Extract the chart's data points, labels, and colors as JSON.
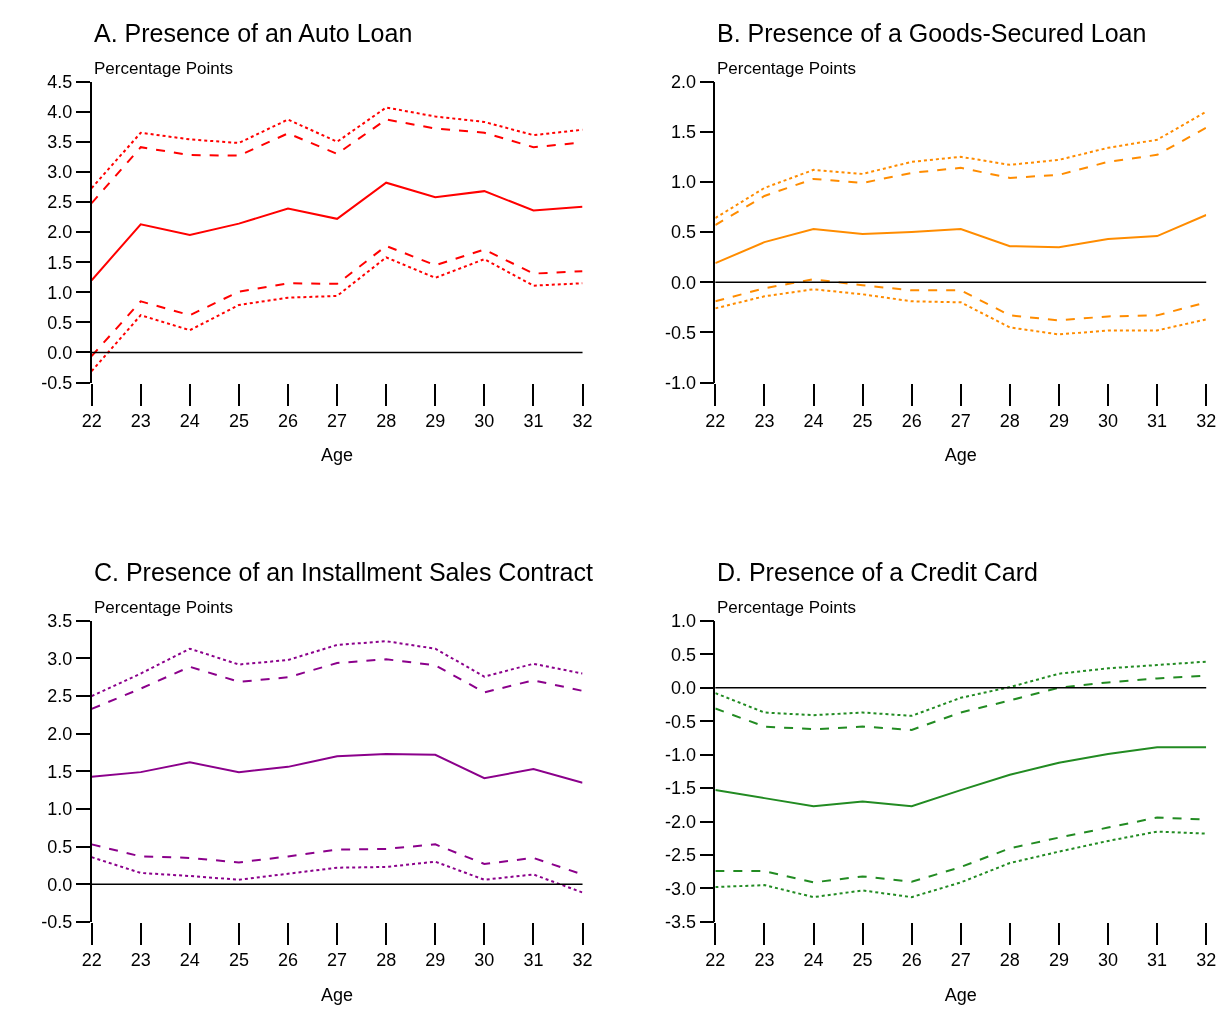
{
  "chart_data": [
    {
      "type": "line",
      "title": "A. Presence of an Auto Loan",
      "ylabel": "Percentage Points",
      "xlabel": "Age",
      "x": [
        22,
        23,
        24,
        25,
        26,
        27,
        28,
        29,
        30,
        31,
        32
      ],
      "xlim": [
        22,
        32
      ],
      "xticks": [
        22,
        23,
        24,
        25,
        26,
        27,
        28,
        29,
        30,
        31,
        32
      ],
      "ylim": [
        -0.5,
        4.5
      ],
      "yticks": [
        {
          "value": -0.5,
          "label": "-0.5"
        },
        {
          "value": 0,
          "label": "0.0"
        },
        {
          "value": 0.5,
          "label": "0.5"
        },
        {
          "value": 1,
          "label": "1.0"
        },
        {
          "value": 1.5,
          "label": "1.5"
        },
        {
          "value": 2,
          "label": "2.0"
        },
        {
          "value": 2.5,
          "label": "2.5"
        },
        {
          "value": 3,
          "label": "3.0"
        },
        {
          "value": 3.5,
          "label": "3.5"
        },
        {
          "value": 4,
          "label": "4.0"
        },
        {
          "value": 4.5,
          "label": "4.5"
        }
      ],
      "ref_lines": [
        {
          "axis": "y",
          "value": 0,
          "color": "#000000"
        }
      ],
      "series": [
        {
          "color": "#ff0000",
          "line_style": "solid",
          "values": [
            1.2,
            2.13,
            1.95,
            2.14,
            2.39,
            2.22,
            2.82,
            2.58,
            2.68,
            2.36,
            2.42
          ]
        },
        {
          "color": "#ff0000",
          "line_style": "dashed",
          "values": [
            2.48,
            3.41,
            3.28,
            3.27,
            3.64,
            3.3,
            3.87,
            3.72,
            3.65,
            3.41,
            3.49
          ]
        },
        {
          "color": "#ff0000",
          "line_style": "dotted",
          "values": [
            2.73,
            3.65,
            3.54,
            3.48,
            3.87,
            3.5,
            4.07,
            3.92,
            3.83,
            3.61,
            3.7
          ]
        },
        {
          "color": "#ff0000",
          "line_style": "dashed",
          "values": [
            -0.06,
            0.85,
            0.62,
            1.01,
            1.15,
            1.14,
            1.77,
            1.45,
            1.71,
            1.31,
            1.35
          ]
        },
        {
          "color": "#ff0000",
          "line_style": "dotted",
          "values": [
            -0.31,
            0.62,
            0.37,
            0.79,
            0.91,
            0.94,
            1.58,
            1.24,
            1.55,
            1.11,
            1.15
          ]
        }
      ]
    },
    {
      "type": "line",
      "title": "B. Presence of a Goods-Secured Loan",
      "ylabel": "Percentage Points",
      "xlabel": "Age",
      "x": [
        22,
        23,
        24,
        25,
        26,
        27,
        28,
        29,
        30,
        31,
        32
      ],
      "xlim": [
        22,
        32
      ],
      "xticks": [
        22,
        23,
        24,
        25,
        26,
        27,
        28,
        29,
        30,
        31,
        32
      ],
      "ylim": [
        -1,
        2
      ],
      "yticks": [
        {
          "value": -1,
          "label": "-1.0"
        },
        {
          "value": -0.5,
          "label": "-0.5"
        },
        {
          "value": 0,
          "label": "0.0"
        },
        {
          "value": 0.5,
          "label": "0.5"
        },
        {
          "value": 1,
          "label": "1.0"
        },
        {
          "value": 1.5,
          "label": "1.5"
        },
        {
          "value": 2,
          "label": "2.0"
        }
      ],
      "ref_lines": [
        {
          "axis": "y",
          "value": 0,
          "color": "#000000"
        }
      ],
      "series": [
        {
          "color": "#ff8c00",
          "line_style": "solid",
          "values": [
            0.19,
            0.4,
            0.53,
            0.48,
            0.5,
            0.53,
            0.36,
            0.35,
            0.43,
            0.46,
            0.67
          ]
        },
        {
          "color": "#ff8c00",
          "line_style": "dashed",
          "values": [
            0.57,
            0.86,
            1.03,
            0.99,
            1.09,
            1.14,
            1.04,
            1.07,
            1.2,
            1.27,
            1.54
          ]
        },
        {
          "color": "#ff8c00",
          "line_style": "dotted",
          "values": [
            0.64,
            0.94,
            1.12,
            1.08,
            1.2,
            1.25,
            1.17,
            1.22,
            1.34,
            1.42,
            1.7
          ]
        },
        {
          "color": "#ff8c00",
          "line_style": "dashed",
          "values": [
            -0.19,
            -0.06,
            0.03,
            -0.03,
            -0.08,
            -0.08,
            -0.33,
            -0.38,
            -0.34,
            -0.33,
            -0.2
          ]
        },
        {
          "color": "#ff8c00",
          "line_style": "dotted",
          "values": [
            -0.26,
            -0.14,
            -0.07,
            -0.12,
            -0.19,
            -0.2,
            -0.45,
            -0.52,
            -0.48,
            -0.48,
            -0.37
          ]
        }
      ]
    },
    {
      "type": "line",
      "title": "C. Presence of an Installment Sales Contract",
      "ylabel": "Percentage Points",
      "xlabel": "Age",
      "x": [
        22,
        23,
        24,
        25,
        26,
        27,
        28,
        29,
        30,
        31,
        32
      ],
      "xlim": [
        22,
        32
      ],
      "xticks": [
        22,
        23,
        24,
        25,
        26,
        27,
        28,
        29,
        30,
        31,
        32
      ],
      "ylim": [
        -0.5,
        3.5
      ],
      "yticks": [
        {
          "value": -0.5,
          "label": "-0.5"
        },
        {
          "value": 0,
          "label": "0.0"
        },
        {
          "value": 0.5,
          "label": "0.5"
        },
        {
          "value": 1,
          "label": "1.0"
        },
        {
          "value": 1.5,
          "label": "1.5"
        },
        {
          "value": 2,
          "label": "2.0"
        },
        {
          "value": 2.5,
          "label": "2.5"
        },
        {
          "value": 3,
          "label": "3.0"
        },
        {
          "value": 3.5,
          "label": "3.5"
        }
      ],
      "ref_lines": [
        {
          "axis": "y",
          "value": 0,
          "color": "#000000"
        }
      ],
      "series": [
        {
          "color": "#8b008b",
          "line_style": "solid",
          "values": [
            1.43,
            1.49,
            1.62,
            1.49,
            1.56,
            1.7,
            1.73,
            1.72,
            1.41,
            1.53,
            1.35
          ]
        },
        {
          "color": "#8b008b",
          "line_style": "dashed",
          "values": [
            2.33,
            2.6,
            2.89,
            2.69,
            2.75,
            2.94,
            2.99,
            2.91,
            2.55,
            2.71,
            2.57
          ]
        },
        {
          "color": "#8b008b",
          "line_style": "dotted",
          "values": [
            2.5,
            2.8,
            3.13,
            2.92,
            2.98,
            3.18,
            3.23,
            3.13,
            2.76,
            2.93,
            2.8
          ]
        },
        {
          "color": "#8b008b",
          "line_style": "dashed",
          "values": [
            0.53,
            0.37,
            0.35,
            0.29,
            0.37,
            0.46,
            0.47,
            0.53,
            0.27,
            0.35,
            0.13
          ]
        },
        {
          "color": "#8b008b",
          "line_style": "dotted",
          "values": [
            0.36,
            0.15,
            0.11,
            0.06,
            0.14,
            0.22,
            0.23,
            0.3,
            0.06,
            0.13,
            -0.11
          ]
        }
      ]
    },
    {
      "type": "line",
      "title": "D. Presence of a Credit Card",
      "ylabel": "Percentage Points",
      "xlabel": "Age",
      "x": [
        22,
        23,
        24,
        25,
        26,
        27,
        28,
        29,
        30,
        31,
        32
      ],
      "xlim": [
        22,
        32
      ],
      "xticks": [
        22,
        23,
        24,
        25,
        26,
        27,
        28,
        29,
        30,
        31,
        32
      ],
      "ylim": [
        -3.5,
        1
      ],
      "yticks": [
        {
          "value": -3.5,
          "label": "-3.5"
        },
        {
          "value": -3,
          "label": "-3.0"
        },
        {
          "value": -2.5,
          "label": "-2.5"
        },
        {
          "value": -2,
          "label": "-2.0"
        },
        {
          "value": -1.5,
          "label": "-1.5"
        },
        {
          "value": -1,
          "label": "-1.0"
        },
        {
          "value": -0.5,
          "label": "-0.5"
        },
        {
          "value": 0,
          "label": "0.0"
        },
        {
          "value": 0.5,
          "label": "0.5"
        },
        {
          "value": 1,
          "label": "1.0"
        }
      ],
      "ref_lines": [
        {
          "axis": "y",
          "value": 0,
          "color": "#000000"
        }
      ],
      "series": [
        {
          "color": "#228b22",
          "line_style": "solid",
          "values": [
            -1.53,
            -1.65,
            -1.77,
            -1.7,
            -1.77,
            -1.53,
            -1.3,
            -1.12,
            -0.99,
            -0.89,
            -0.89
          ]
        },
        {
          "color": "#228b22",
          "line_style": "dashed",
          "values": [
            -0.31,
            -0.58,
            -0.62,
            -0.58,
            -0.63,
            -0.37,
            -0.19,
            0.0,
            0.08,
            0.14,
            0.18
          ]
        },
        {
          "color": "#228b22",
          "line_style": "dotted",
          "values": [
            -0.08,
            -0.37,
            -0.41,
            -0.37,
            -0.42,
            -0.15,
            0.01,
            0.21,
            0.29,
            0.34,
            0.39
          ]
        },
        {
          "color": "#228b22",
          "line_style": "dashed",
          "values": [
            -2.74,
            -2.74,
            -2.91,
            -2.82,
            -2.9,
            -2.68,
            -2.4,
            -2.24,
            -2.09,
            -1.94,
            -1.97
          ]
        },
        {
          "color": "#228b22",
          "line_style": "dotted",
          "values": [
            -2.98,
            -2.95,
            -3.13,
            -3.03,
            -3.13,
            -2.91,
            -2.62,
            -2.45,
            -2.29,
            -2.15,
            -2.18
          ]
        }
      ]
    }
  ]
}
